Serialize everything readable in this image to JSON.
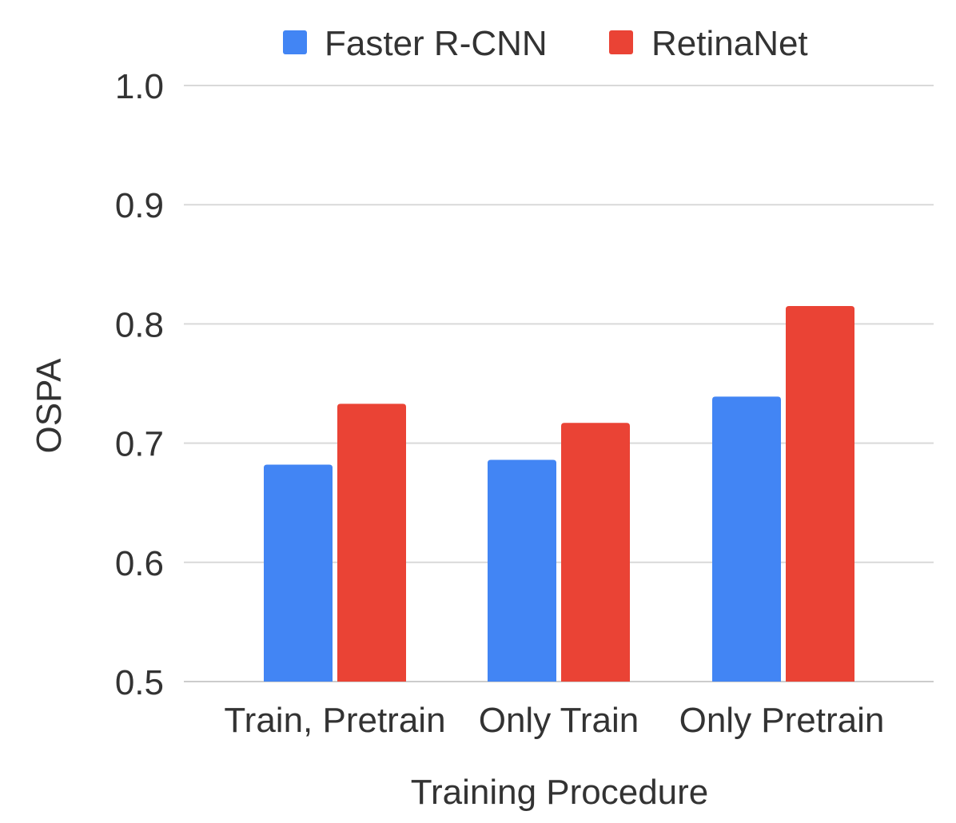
{
  "chart_data": {
    "type": "bar",
    "title": "",
    "xlabel": "Training Procedure",
    "ylabel": "OSPA",
    "categories": [
      "Train, Pretrain",
      "Only Train",
      "Only Pretrain"
    ],
    "series": [
      {
        "name": "Faster R-CNN",
        "color": "#4285f4",
        "values": [
          0.682,
          0.686,
          0.739
        ]
      },
      {
        "name": "RetinaNet",
        "color": "#ea4335",
        "values": [
          0.733,
          0.717,
          0.815
        ]
      }
    ],
    "ylim": [
      0.5,
      1.0
    ],
    "yticks": [
      "0.5",
      "0.6",
      "0.7",
      "0.8",
      "0.9",
      "1.0"
    ],
    "ytick_values": [
      0.5,
      0.6,
      0.7,
      0.8,
      0.9,
      1.0
    ],
    "grid": true,
    "legend_position": "top-center"
  }
}
